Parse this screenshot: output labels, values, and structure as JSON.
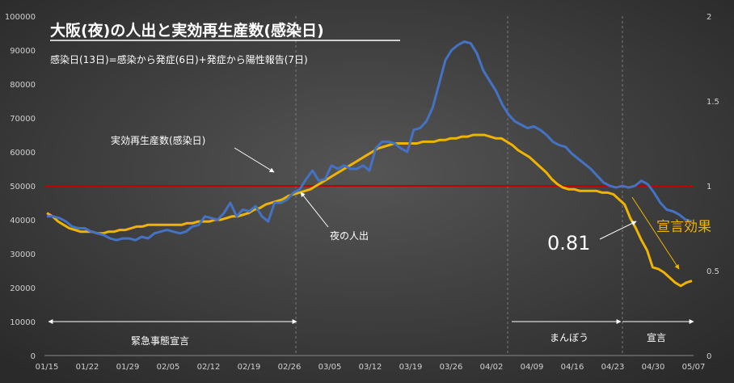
{
  "chart_data": {
    "type": "line",
    "title": "大阪(夜)の人出と実効再生産数(感染日)",
    "subtitle": "感染日(13日)=感染から発症(6日)+発症から陽性報告(7日)",
    "y_left": {
      "min": 0,
      "max": 100000,
      "ticks": [
        "0",
        "10000",
        "20000",
        "30000",
        "40000",
        "50000",
        "60000",
        "70000",
        "80000",
        "90000",
        "100000"
      ]
    },
    "y_right": {
      "min": 0,
      "max": 2,
      "ticks": [
        "0",
        "0.5",
        "1",
        "1.5",
        "2"
      ]
    },
    "x_ticks": [
      "01/15",
      "01/22",
      "01/29",
      "02/05",
      "02/12",
      "02/19",
      "02/26",
      "03/05",
      "03/12",
      "03/19",
      "03/26",
      "04/02",
      "04/09",
      "04/16",
      "04/23",
      "04/30",
      "05/07"
    ],
    "reference_line": {
      "axis": "right",
      "value": 1,
      "color": "#c00000"
    },
    "series": [
      {
        "name": "実効再生産数(感染日)",
        "color": "#4472c4",
        "axis": "left",
        "values": [
          41000,
          41000,
          40500,
          39500,
          38000,
          37500,
          37500,
          36500,
          36000,
          35500,
          34500,
          34000,
          34500,
          34500,
          34000,
          35000,
          34500,
          36000,
          36500,
          37000,
          36500,
          36000,
          36500,
          38000,
          38500,
          41000,
          40500,
          40000,
          42000,
          45000,
          41000,
          43000,
          42500,
          44000,
          41000,
          39500,
          45000,
          45000,
          46000,
          48000,
          49000,
          52000,
          54500,
          51500,
          52000,
          56000,
          55000,
          56000,
          55000,
          55000,
          56000,
          54500,
          61000,
          63000,
          63000,
          62500,
          61000,
          60000,
          66500,
          67000,
          69000,
          73000,
          80000,
          87000,
          90000,
          91500,
          92500,
          92000,
          89000,
          84000,
          81000,
          78000,
          74000,
          71000,
          69000,
          68000,
          67000,
          67500,
          66500,
          65000,
          63000,
          62000,
          61500,
          59500,
          58000,
          56500,
          55000,
          53000,
          51000,
          50000,
          49500,
          50000,
          49500,
          50000,
          51500,
          50500,
          48000,
          45000,
          43000,
          42500,
          41500,
          40000,
          39500
        ]
      },
      {
        "name": "夜の人出",
        "color": "#f0b400",
        "axis": "right",
        "values": [
          0.84,
          0.82,
          0.79,
          0.77,
          0.75,
          0.74,
          0.73,
          0.73,
          0.73,
          0.72,
          0.72,
          0.73,
          0.73,
          0.74,
          0.74,
          0.75,
          0.76,
          0.76,
          0.77,
          0.77,
          0.77,
          0.77,
          0.77,
          0.77,
          0.77,
          0.78,
          0.78,
          0.79,
          0.79,
          0.79,
          0.8,
          0.8,
          0.81,
          0.82,
          0.82,
          0.83,
          0.84,
          0.86,
          0.87,
          0.89,
          0.9,
          0.91,
          0.92,
          0.94,
          0.95,
          0.96,
          0.97,
          0.98,
          1.0,
          1.02,
          1.04,
          1.06,
          1.08,
          1.1,
          1.12,
          1.14,
          1.16,
          1.18,
          1.2,
          1.22,
          1.23,
          1.24,
          1.25,
          1.25,
          1.25,
          1.25,
          1.25,
          1.26,
          1.26,
          1.26,
          1.27,
          1.27,
          1.28,
          1.28,
          1.29,
          1.29,
          1.3,
          1.3,
          1.3,
          1.29,
          1.28,
          1.28,
          1.26,
          1.24,
          1.21,
          1.19,
          1.17,
          1.14,
          1.11,
          1.08,
          1.04,
          1.01,
          0.99,
          0.98,
          0.98,
          0.97,
          0.97,
          0.97,
          0.97,
          0.96,
          0.96,
          0.95,
          0.92,
          0.89,
          0.81,
          0.75,
          0.68,
          0.62,
          0.52,
          0.51,
          0.49,
          0.46,
          0.43,
          0.41,
          0.43,
          0.44
        ]
      }
    ]
  },
  "annotations": {
    "rt_label": "実効再生産数(感染日)",
    "night_label": "夜の人出",
    "value_callout": "0.81",
    "effect_label": "宣言効果"
  },
  "periods": [
    {
      "label": "緊急事態宣言"
    },
    {
      "label": "まんぼう"
    },
    {
      "label": "宣言"
    }
  ]
}
